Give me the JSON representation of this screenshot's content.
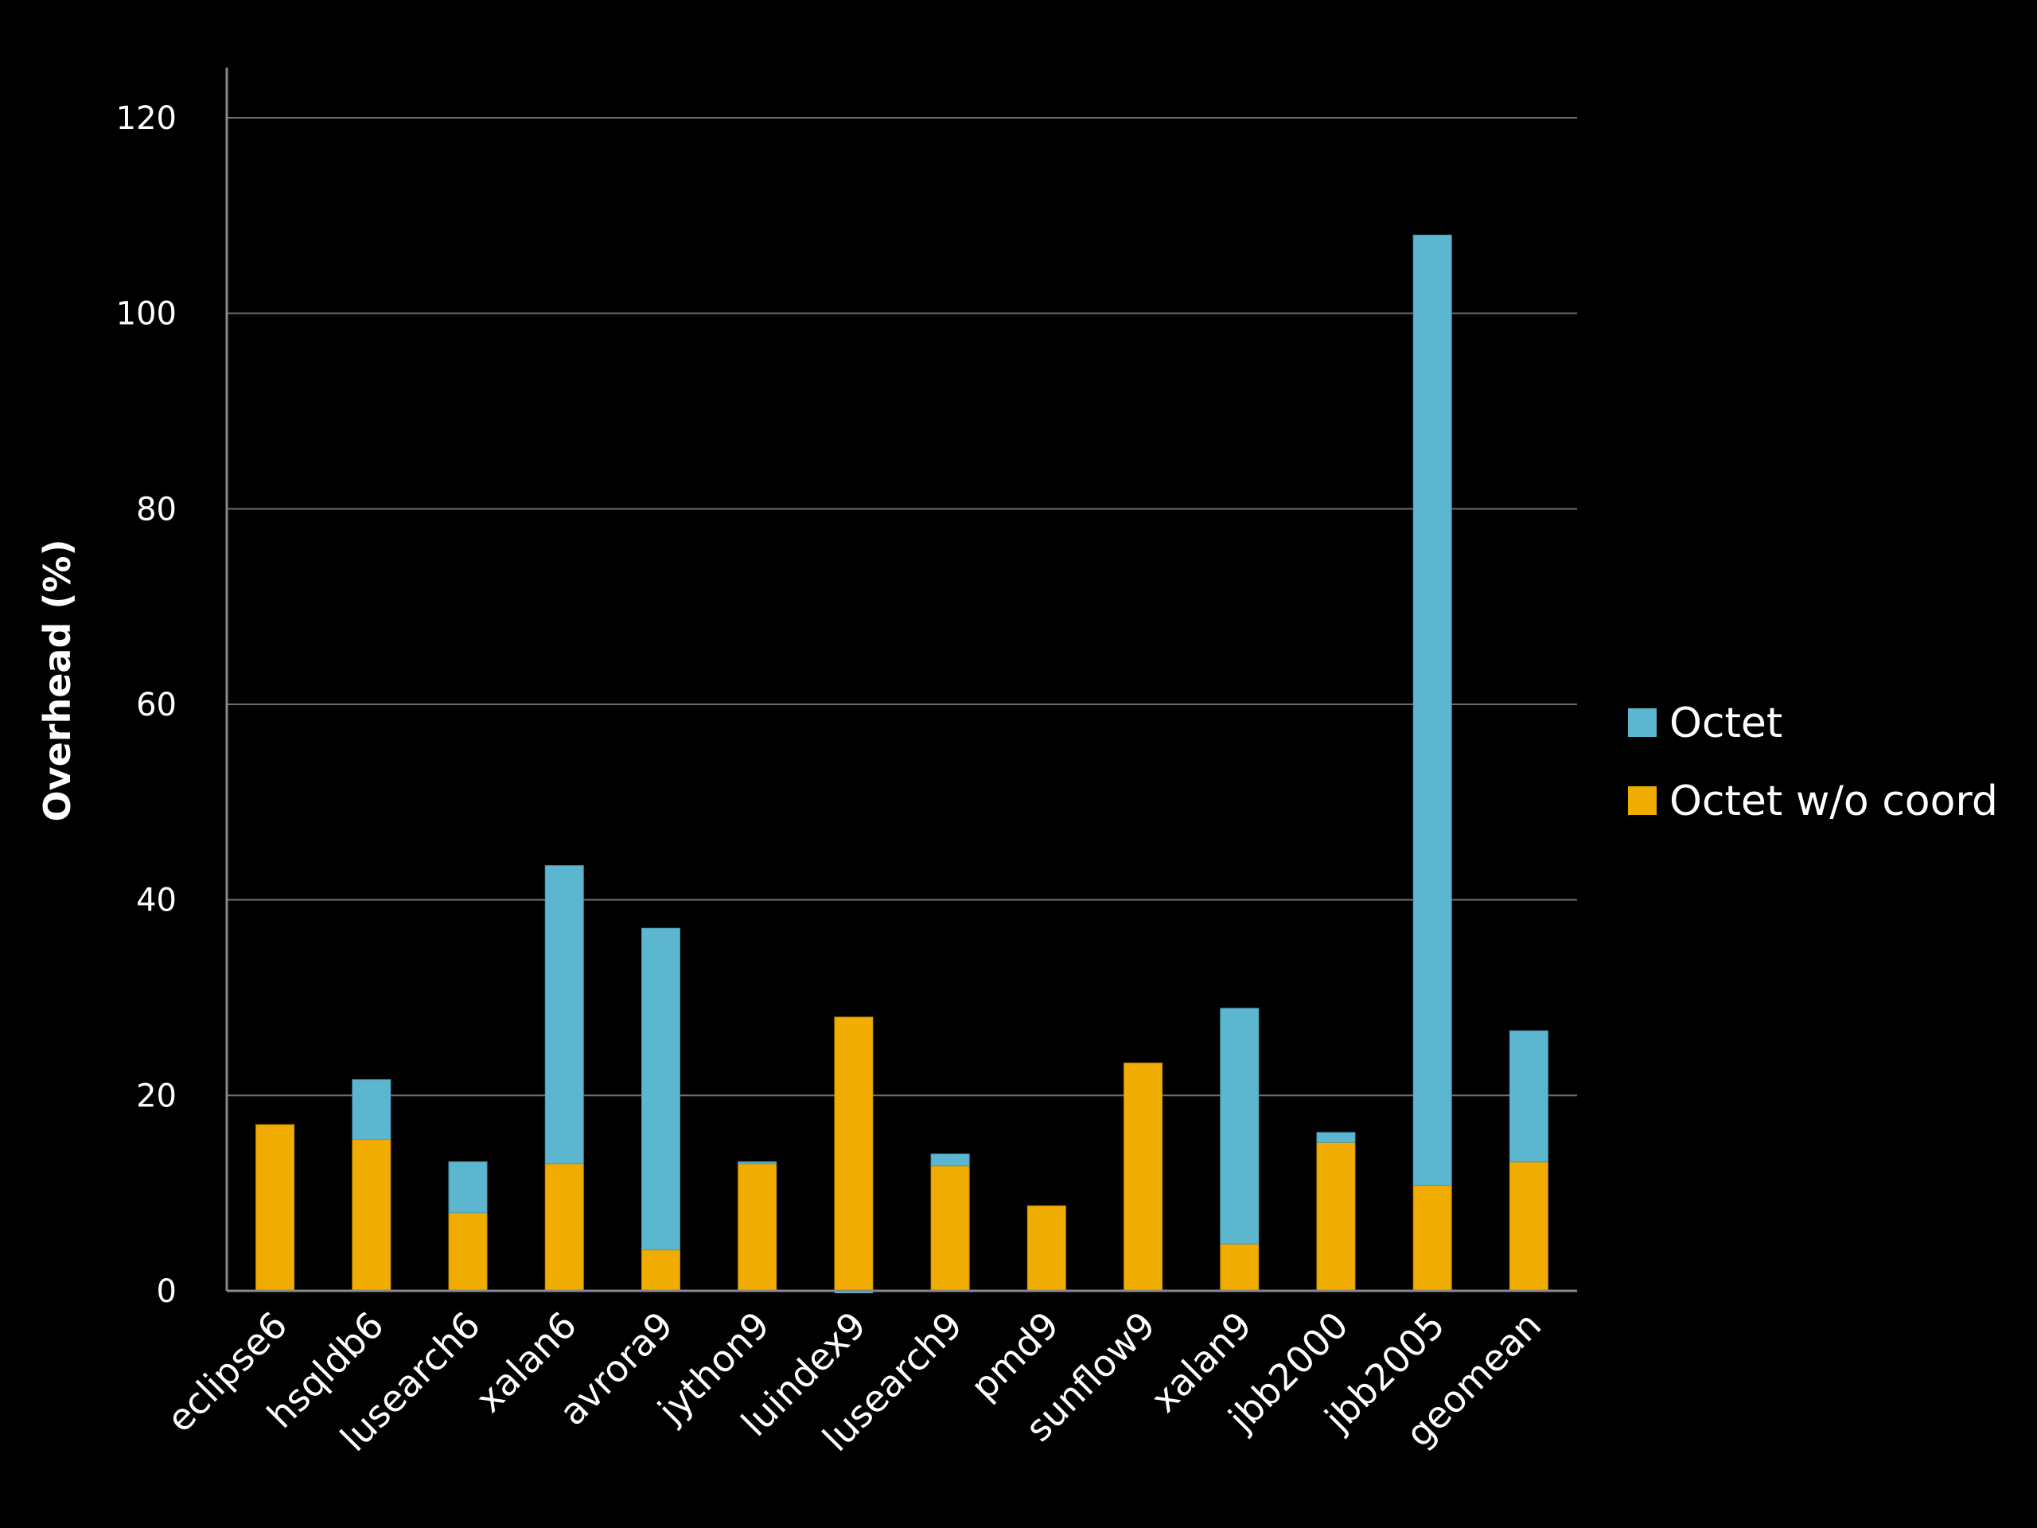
{
  "chart_data": {
    "type": "bar",
    "stacked": true,
    "title": "",
    "xlabel": "",
    "ylabel": "Overhead (%)",
    "ylim": [
      0,
      120
    ],
    "yticks": [
      0,
      20,
      40,
      60,
      80,
      100,
      120
    ],
    "ytick_labels": [
      "0",
      "20",
      "40",
      "60",
      "80",
      "100",
      "120"
    ],
    "grid": true,
    "legend_position": "right",
    "categories": [
      "eclipse6",
      "hsqldb6",
      "lusearch6",
      "xalan6",
      "avrora9",
      "jython9",
      "luindex9",
      "lusearch9",
      "pmd9",
      "sunflow9",
      "xalan9",
      "jbb2000",
      "jbb2005",
      "geomean"
    ],
    "series": [
      {
        "name": "Octet w/o coord",
        "color": "#F0AC00",
        "values": [
          17,
          15.5,
          8,
          13,
          4.2,
          13,
          28,
          12.8,
          8.7,
          23.3,
          4.8,
          15.2,
          10.8,
          13.2
        ]
      },
      {
        "name": "Octet",
        "color": "#5DB6D0",
        "total_values": [
          17,
          21.6,
          13.2,
          43.5,
          37.1,
          13.2,
          -0.2,
          14,
          8.7,
          23.3,
          28.9,
          16.2,
          108,
          26.6
        ]
      }
    ]
  }
}
